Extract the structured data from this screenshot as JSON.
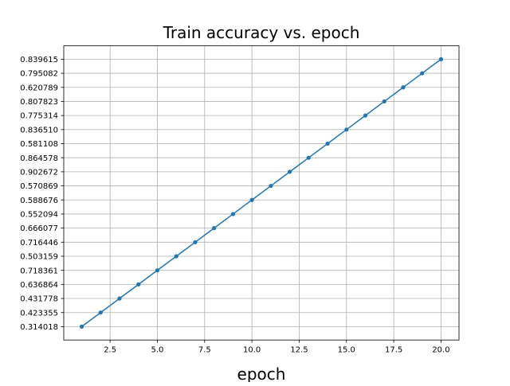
{
  "chart_data": {
    "type": "line",
    "title": "Train accuracy vs. epoch",
    "xlabel": "epoch",
    "ylabel": "",
    "x": [
      1,
      2,
      3,
      4,
      5,
      6,
      7,
      8,
      9,
      10,
      11,
      12,
      13,
      14,
      15,
      16,
      17,
      18,
      19,
      20
    ],
    "y": [
      "0.314018",
      "0.423355",
      "0.431778",
      "0.636864",
      "0.718361",
      "0.503159",
      "0.716446",
      "0.666077",
      "0.552094",
      "0.588676",
      "0.570869",
      "0.902672",
      "0.864578",
      "0.581108",
      "0.836510",
      "0.775314",
      "0.807823",
      "0.620789",
      "0.795082",
      "0.839615"
    ],
    "y_axis": "categorical",
    "xticks": [
      "2.5",
      "5.0",
      "7.5",
      "10.0",
      "12.5",
      "15.0",
      "17.5",
      "20.0"
    ],
    "xtick_values": [
      2.5,
      5.0,
      7.5,
      10.0,
      12.5,
      15.0,
      17.5,
      20.0
    ],
    "xlim": [
      0.05,
      20.95
    ],
    "ylim": [
      -0.95,
      19.95
    ],
    "grid": true,
    "marker": "circle",
    "line_color": "#1f77b4"
  }
}
